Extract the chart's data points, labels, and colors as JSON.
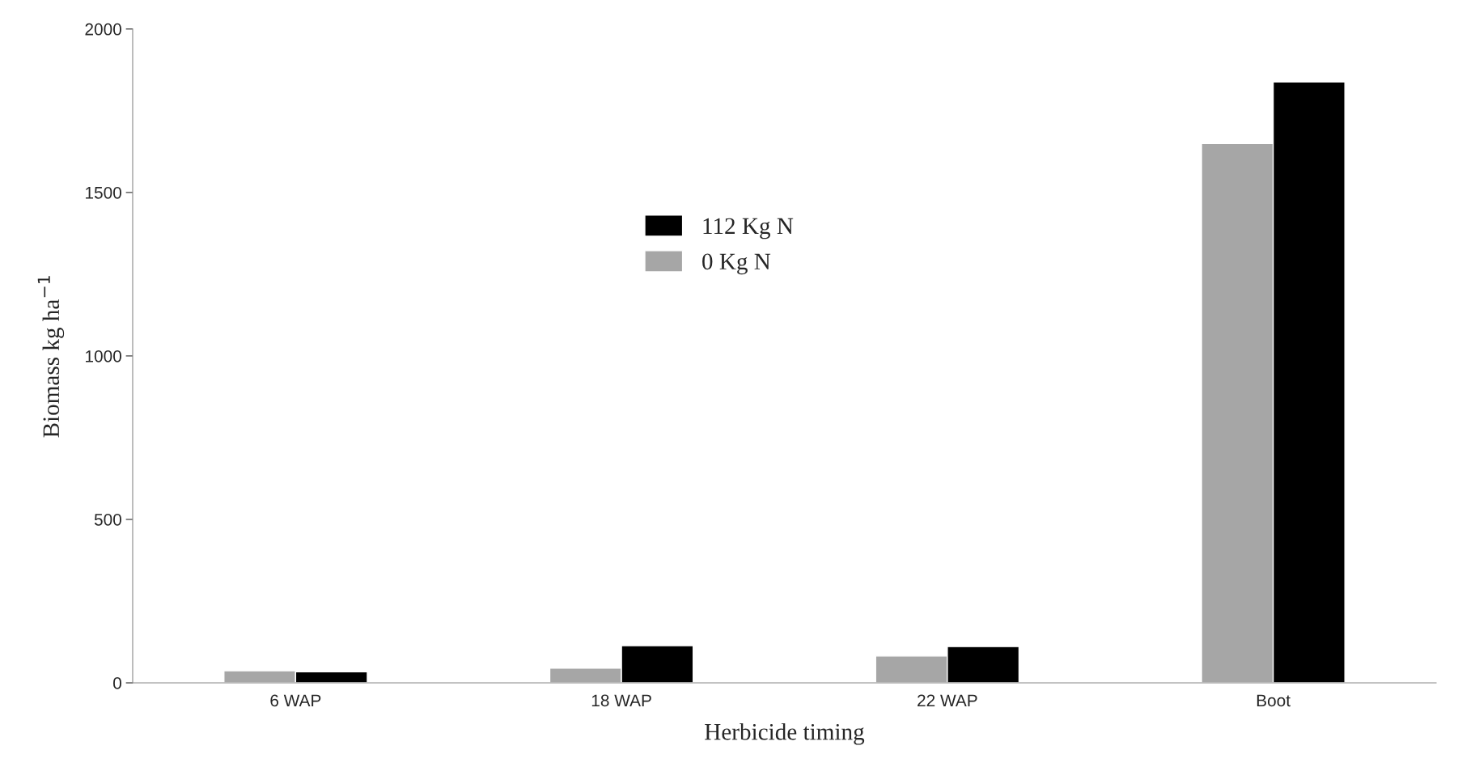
{
  "chart_data": {
    "type": "bar",
    "xlabel": "Herbicide timing",
    "ylabel": "Biomass kg ha$^{−1}$",
    "categories": [
      "6 WAP",
      "18 WAP",
      "22 WAP",
      "Boot"
    ],
    "series": [
      {
        "name": "0 Kg N",
        "color": "#a6a6a6",
        "values": [
          37,
          45,
          82,
          1650
        ]
      },
      {
        "name": "112 Kg N",
        "color": "#000000",
        "values": [
          34,
          114,
          111,
          1838
        ]
      }
    ],
    "ylim": [
      0,
      2000
    ],
    "yticks": [
      0,
      500,
      1000,
      1500,
      2000
    ],
    "grid": false,
    "legend": "center"
  }
}
